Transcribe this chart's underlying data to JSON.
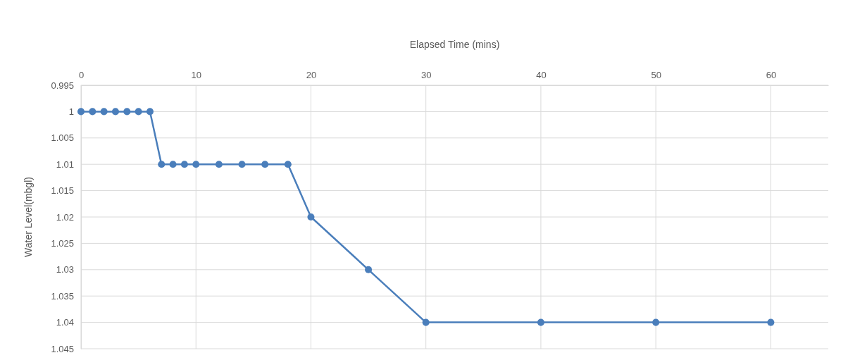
{
  "chart_data": {
    "type": "line",
    "xlabel": "Elapsed Time (mins)",
    "ylabel": "Water Level(mbgl)",
    "x": [
      0,
      1,
      2,
      3,
      4,
      5,
      6,
      7,
      8,
      9,
      10,
      12,
      14,
      16,
      18,
      20,
      25,
      30,
      40,
      50,
      60
    ],
    "series": [
      {
        "color": "#4a7ebb",
        "values": [
          1,
          1,
          1,
          1,
          1,
          1,
          1,
          1.01,
          1.01,
          1.01,
          1.01,
          1.01,
          1.01,
          1.01,
          1.01,
          1.02,
          1.03,
          1.04,
          1.04,
          1.04,
          1.04
        ]
      }
    ],
    "xlim": [
      0,
      65
    ],
    "xticks": [
      0,
      10,
      20,
      30,
      40,
      50,
      60
    ],
    "ylim": [
      1.045,
      0.995
    ],
    "yticks": [
      0.995,
      1,
      1.005,
      1.01,
      1.015,
      1.02,
      1.025,
      1.03,
      1.035,
      1.04,
      1.045
    ],
    "grid": true,
    "marker": "circle",
    "line_style": "solid"
  }
}
